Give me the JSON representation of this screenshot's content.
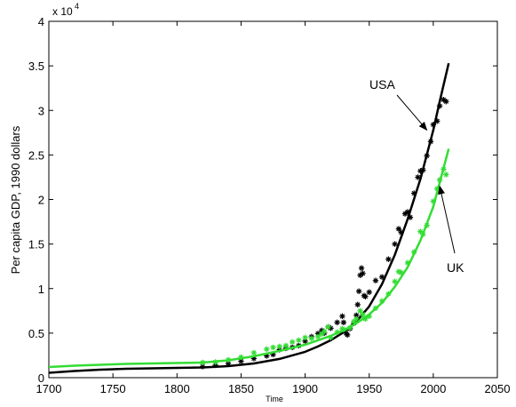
{
  "chart_data": {
    "type": "line",
    "title": "",
    "xlabel": "Time",
    "ylabel": "Per capita GDP, 1990 dollars",
    "y_multiplier_label": "x 10",
    "y_multiplier_exponent": "4",
    "xlim": [
      1700,
      2050
    ],
    "ylim": [
      0,
      40000
    ],
    "x_ticks": [
      1700,
      1750,
      1800,
      1850,
      1900,
      1950,
      2000,
      2050
    ],
    "y_ticks": [
      0,
      5000,
      10000,
      15000,
      20000,
      25000,
      30000,
      35000,
      40000
    ],
    "x_tick_labels": [
      "1700",
      "1750",
      "1800",
      "1850",
      "1900",
      "1950",
      "2000",
      "2050"
    ],
    "y_tick_labels": [
      "0",
      "0.5",
      "1",
      "1.5",
      "2",
      "2.5",
      "3",
      "3.5",
      "4"
    ],
    "grid": false,
    "colors": {
      "usa": "#000000",
      "uk": "#33dd33"
    },
    "series": [
      {
        "kind": "fit",
        "country": "usa",
        "x": [
          1700,
          1720,
          1740,
          1760,
          1780,
          1800,
          1820,
          1840,
          1860,
          1880,
          1900,
          1910,
          1920,
          1930,
          1940,
          1950,
          1960,
          1970,
          1980,
          1990,
          2000,
          2005,
          2012
        ],
        "y": [
          550,
          750,
          900,
          1000,
          1050,
          1100,
          1150,
          1300,
          1600,
          2100,
          2900,
          3500,
          4200,
          5100,
          6300,
          8000,
          10500,
          13800,
          17800,
          22300,
          27800,
          31000,
          35300
        ]
      },
      {
        "kind": "data",
        "country": "usa",
        "x": [
          1820,
          1830,
          1840,
          1850,
          1860,
          1870,
          1875,
          1880,
          1885,
          1890,
          1895,
          1900,
          1905,
          1910,
          1913,
          1915,
          1918,
          1920,
          1925,
          1929,
          1930,
          1932,
          1933,
          1935,
          1938,
          1940,
          1941,
          1942,
          1943,
          1944,
          1945,
          1946,
          1947,
          1950,
          1955,
          1960,
          1965,
          1970,
          1973,
          1975,
          1978,
          1980,
          1982,
          1985,
          1988,
          1990,
          1992,
          1995,
          1998,
          2000,
          2003,
          2005,
          2008,
          2010
        ],
        "y": [
          1250,
          1400,
          1600,
          1850,
          2150,
          2450,
          2600,
          3150,
          3300,
          3400,
          3600,
          4100,
          4600,
          4950,
          5300,
          5000,
          5700,
          5550,
          6200,
          6900,
          6200,
          5000,
          4800,
          5500,
          6100,
          7000,
          8200,
          9700,
          11500,
          12300,
          11700,
          9200,
          9100,
          9600,
          10900,
          11300,
          13300,
          15000,
          16700,
          16300,
          18400,
          18600,
          18000,
          20700,
          22500,
          23200,
          23300,
          24900,
          26500,
          28400,
          28800,
          30500,
          31200,
          31000
        ]
      },
      {
        "kind": "fit",
        "country": "uk",
        "x": [
          1700,
          1720,
          1740,
          1760,
          1780,
          1800,
          1820,
          1840,
          1860,
          1880,
          1900,
          1910,
          1920,
          1930,
          1940,
          1945,
          1950,
          1960,
          1970,
          1980,
          1990,
          2000,
          2012
        ],
        "y": [
          1200,
          1350,
          1450,
          1550,
          1600,
          1650,
          1700,
          1950,
          2400,
          3000,
          3700,
          4200,
          4700,
          5300,
          6100,
          6600,
          7100,
          8400,
          10200,
          12400,
          15400,
          19200,
          25700
        ]
      },
      {
        "kind": "data",
        "country": "uk",
        "x": [
          1820,
          1830,
          1840,
          1850,
          1860,
          1870,
          1875,
          1880,
          1885,
          1890,
          1895,
          1900,
          1905,
          1910,
          1913,
          1915,
          1918,
          1920,
          1925,
          1929,
          1930,
          1935,
          1938,
          1940,
          1943,
          1945,
          1946,
          1947,
          1950,
          1955,
          1960,
          1965,
          1970,
          1973,
          1975,
          1980,
          1985,
          1990,
          1992,
          1995,
          2000,
          2003,
          2005,
          2008,
          2010
        ],
        "y": [
          1700,
          1750,
          2000,
          2300,
          2800,
          3200,
          3400,
          3500,
          3600,
          4000,
          4200,
          4500,
          4400,
          4600,
          4900,
          5200,
          5700,
          4500,
          5100,
          5500,
          5400,
          5600,
          6300,
          6600,
          7500,
          7100,
          6700,
          6600,
          6900,
          7800,
          8600,
          9400,
          10800,
          11900,
          11800,
          12900,
          14100,
          16400,
          16100,
          17100,
          19800,
          21200,
          22200,
          23400,
          22800
        ]
      }
    ],
    "annotations": [
      {
        "text": "USA",
        "points_to": [
          1995,
          27800
        ]
      },
      {
        "text": "UK",
        "points_to": [
          2005,
          21500
        ]
      }
    ]
  }
}
